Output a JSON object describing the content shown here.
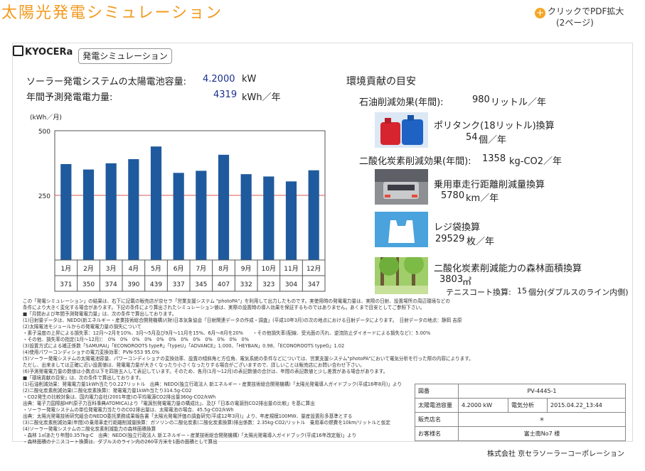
{
  "page": {
    "title": "太陽光発電シミュレーション",
    "pdf_link_line1": "クリックでPDF拡大",
    "pdf_link_line2": "(2ページ)"
  },
  "sheet": {
    "logo": "KYOCERa",
    "tab": "発電シミュレーション",
    "capacity_label": "ソーラー発電システムの太陽電池容量:",
    "capacity_value": "4.2000",
    "capacity_unit": "kW",
    "annual_label": "年間予測発電電力量:",
    "annual_value": "4319",
    "annual_unit": "kWh／年",
    "env": {
      "heading": "環境貢献の目安",
      "oil_label": "石油削減効果(年間):",
      "oil_value": "980",
      "oil_unit": "リットル／年",
      "poly_label": "ポリタンク(18リットル)換算",
      "poly_value": "54",
      "poly_unit": "個／年",
      "co2_label": "二酸化炭素削減効果(年間):",
      "co2_value": "1358",
      "co2_unit": "kg-CO2／年",
      "car_label": "乗用車走行距離削減量換算",
      "car_value": "5780",
      "car_unit": "km／年",
      "bag_label": "レジ袋換算",
      "bag_value": "29529",
      "bag_unit": "枚／年",
      "forest_label": "二酸化炭素削減能力の森林面積換算",
      "forest_value": "3803",
      "forest_unit": "㎡",
      "tennis_label": "テニスコート換算:",
      "tennis_value": "15",
      "tennis_unit": "個分(ダブルスのライン内側)"
    },
    "notes": [
      "この「発電シミュレーション」の結果は、右下に記載の販売店が京セラ「営業支援システム \"photoPA\"」を利用して出力したものです。実使用時の発電電力量は、実際の日射、設置場所の周辺環境などの",
      "条件により大きく変化する場合があります。下記の条件により算出されたシミュレーション値は、実際の設置時の導入効果を保証するものではありません。あくまで目安としてご参照下さい。",
      "■「月間および年間予測発電電力量」は、次の条件で算出しております。",
      "(1)日射量データは、NEDO(新エネルギー・産業技術総合開発機構)/(財)日本気象協会「日射関連データの作成・調査」(平成10年3月)の次の地点における日射データによります。　日射データの地点：静岡 吉原",
      "(2)太陽電池モジュールからの発電電力量の損失について",
      "・素子温度の上昇による損失率：12月〜2月を10%、3月〜5月及び9月〜11月を15%、6月〜8月を20%　　・その他損失率(配線、受光面の汚れ、逆流防止ダイオードによる損失など)：5.00%",
      "・その他、損失率の指定(1月〜12月)：　0%　0%　0%　0%　0%　0%　0%　0%　0%　0%　0%　0%",
      "(3)設置方式による補正係数「SAMURAI」「ECONOROOTS typeR」「typeU」「ADVANCE」1.000、「HEYBAN」0.98、「ECONOROOTS typeG」1.02",
      "(4)使用パワーコンディショナの電力変換効率：PVN-553 95.0%",
      "(5)ソーラー発電システムの太陽電池容量、パワーコンディショナの変換効率、設置の傾斜角と方位角、電気系統の条件などについては、営業支援システム\"photoPA\"において電気分析を行った際の内容によります。",
      "ただし、出来ましては正確に近い設置値は、発電電力量が大きくなったり小さくなったりする場合がございますので、詳しいことは販売店にお問い合わせ下さい。",
      "(6)予測発電電力量の数値は小数点以下を四捨五入して表記しています。そのため、各月(1月〜12月)の表記数値の合計は、年間の表記数値と少し差異がある場合があります。",
      "■「環境貢献の目安」は、次の条件で算出しております。",
      "(1)石油削減効果：発電電力量1kWh当たり0.227リットル　出典：NEDO(独立行政法人 新エネルギー・産業技術総合開発機構)「太陽光発電導入ガイドブック(平成16年8月)」より",
      "(2)二酸化炭素削減効果(二酸化炭素換算)：発電電力量1kWh当たり314.5g-CO2",
      "・CO2発生の比較対象は、国内電力会社(2001年度)の平均電源CO2排出量360g-CO2/kWh",
      "出典：電子力国際部HP(原子力百科事典ATOMICA)より「電源別発電電力量の構成比」、及び「日本の電源別CO2排出量の比較」を基に算出",
      "・ソーラー発電システムの単位発電電力当たりのCO2排出量は、太陽電池の場合、45.5g-CO2/kWh",
      "出典：太陽光発電技術研究組合のNEDO委託業務成果報告書「太陽光発電評価の調査研究(平成12年3月)」より、年産規模100MW、量産設置形多基準とする",
      "(3)二酸化炭素削減効果(年間)の乗用車走行距離削減量換算：ガソリンの二酸化炭素(二酸化炭素換算)排出係数：2.35kg-CO2/リットル　乗用車の燃費を10km/リットルと仮定",
      "(4)ソーラー発電システムの二酸化炭素削減能力の森林面積換算",
      "・森林 1㎡あたり年間0.357kg-C　出典：NEDO(独立行政法人 新エネルギー・産業技術総合開発機構)「太陽光発電導入ガイドブック(平成16年改定版)」より",
      "・森林面積のテニスコート換算は、ダブルスのライン内の260平方米を1面の面積として算出"
    ],
    "info_table": [
      {
        "label": "図番",
        "value": "PV-4445-1"
      },
      {
        "label": "太陽電池容量",
        "value": "4.2000 kW",
        "extra_label": "電気分析",
        "extra_value": "2015.04.22_13:44"
      },
      {
        "label": "販売店名",
        "value": "＊"
      },
      {
        "label": "お客様名",
        "value": "富士南No7 様"
      }
    ],
    "company": "株式会社 京セラソーラーコーポレーション"
  },
  "chart_data": {
    "type": "bar",
    "ylabel": "(kWh／月)",
    "ylim": [
      0,
      500
    ],
    "yticks": [
      250,
      500
    ],
    "reference_line": 250,
    "categories": [
      "1月",
      "2月",
      "3月",
      "4月",
      "5月",
      "6月",
      "7月",
      "8月",
      "9月",
      "10月",
      "11月",
      "12月"
    ],
    "values": [
      371,
      350,
      374,
      390,
      439,
      337,
      345,
      407,
      332,
      323,
      304,
      347
    ],
    "bar_color": "#1f5a9e",
    "reference_color": "#e05a4a"
  }
}
